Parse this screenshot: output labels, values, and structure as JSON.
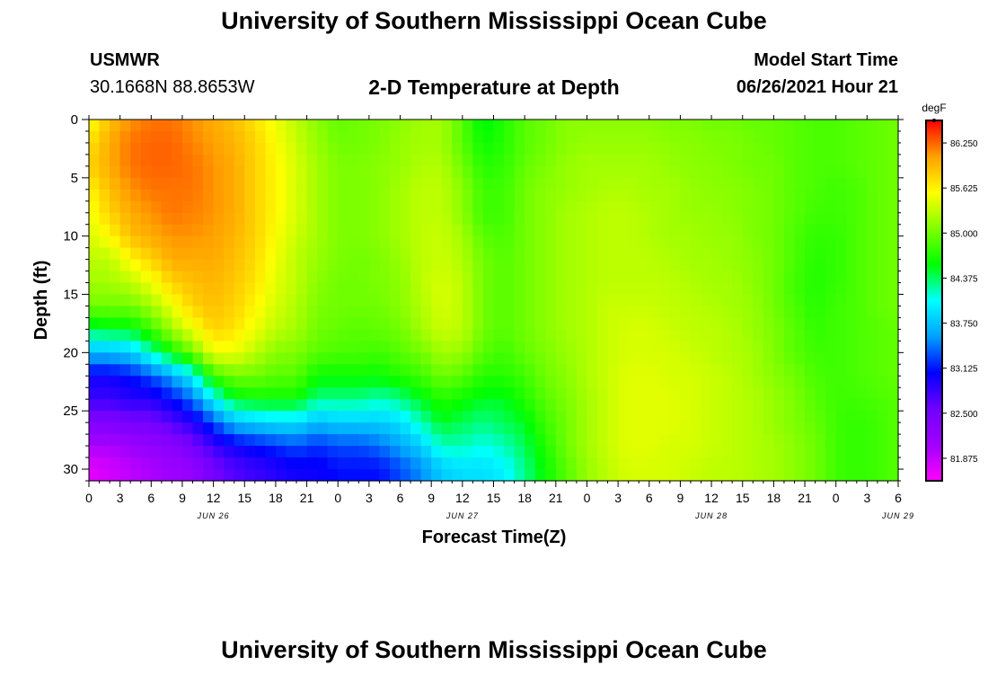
{
  "header": {
    "title": "University of Southern Mississippi Ocean Cube",
    "station": "USMWR",
    "coords": "30.1668N  88.8653W",
    "plot_title": "2-D Temperature at Depth",
    "start_label": "Model Start Time",
    "start_value": "06/26/2021 Hour 21"
  },
  "footer": {
    "title": "University of Southern Mississippi Ocean Cube"
  },
  "chart_data": {
    "type": "heatmap",
    "title": "2-D Temperature at Depth",
    "xlabel": "Forecast Time(Z)",
    "ylabel": "Depth (ft)",
    "x_ticks": [
      "0",
      "3",
      "6",
      "9",
      "12",
      "15",
      "18",
      "21",
      "0",
      "3",
      "6",
      "9",
      "12",
      "15",
      "18",
      "21",
      "0",
      "3",
      "6",
      "9",
      "12",
      "15",
      "18",
      "21",
      "0",
      "3",
      "6"
    ],
    "date_labels": [
      {
        "label": "JUN 26",
        "at_hour": 12
      },
      {
        "label": "JUN 27",
        "at_hour": 36
      },
      {
        "label": "JUN 28",
        "at_hour": 60
      },
      {
        "label": "JUN 29",
        "at_hour": 78
      }
    ],
    "xlim_hours": [
      0,
      78
    ],
    "y_ticks": [
      "0",
      "5",
      "10",
      "15",
      "20",
      "25",
      "30"
    ],
    "ylim": [
      0,
      31
    ],
    "colorbar": {
      "unit": "degF",
      "labels": [
        "86.250",
        "85.625",
        "85.000",
        "84.375",
        "83.750",
        "83.125",
        "82.500",
        "81.875"
      ],
      "range": [
        81.5625,
        86.5625
      ],
      "colors": [
        "#ff00ff",
        "#a000ff",
        "#7000ff",
        "#0000ff",
        "#00a0ff",
        "#00ffff",
        "#00ff00",
        "#80ff00",
        "#ffff00",
        "#ffa000",
        "#ff0000"
      ]
    },
    "hours": [
      0,
      2,
      4,
      6,
      8,
      10,
      12,
      14,
      16,
      18,
      20,
      22,
      24,
      26,
      28,
      30,
      32,
      34,
      36,
      38,
      40,
      42,
      44,
      46,
      48,
      50,
      52,
      54,
      56,
      58,
      60,
      62,
      64,
      66,
      68,
      70,
      72,
      74,
      76,
      78
    ],
    "depths": [
      0,
      2,
      4,
      6,
      8,
      10,
      12,
      14,
      16,
      18,
      20,
      22,
      24,
      26,
      28,
      30
    ],
    "values": [
      [
        85.5,
        85.7,
        85.8,
        85.6,
        85.5,
        85.4,
        85.3,
        85.2,
        85.0,
        84.4,
        83.7,
        83.0,
        82.8,
        82.4,
        82.0,
        81.7
      ],
      [
        85.9,
        86.0,
        86.0,
        85.9,
        85.8,
        85.6,
        85.3,
        85.2,
        85.0,
        84.5,
        83.7,
        83.0,
        82.8,
        82.4,
        82.0,
        81.8
      ],
      [
        86.1,
        86.2,
        86.2,
        86.1,
        86.0,
        85.9,
        85.6,
        85.3,
        85.0,
        84.5,
        83.8,
        83.1,
        82.9,
        82.5,
        82.1,
        81.9
      ],
      [
        86.2,
        86.25,
        86.25,
        86.2,
        86.1,
        86.0,
        85.8,
        85.5,
        85.2,
        84.8,
        84.2,
        83.3,
        82.9,
        82.5,
        82.2,
        82.0
      ],
      [
        86.2,
        86.25,
        86.25,
        86.2,
        86.2,
        86.1,
        86.0,
        85.8,
        85.5,
        85.2,
        84.6,
        83.6,
        83.1,
        82.7,
        82.3,
        82.1
      ],
      [
        86.1,
        86.15,
        86.2,
        86.2,
        86.15,
        86.1,
        86.0,
        85.9,
        85.8,
        85.5,
        85.0,
        84.0,
        83.4,
        82.9,
        82.5,
        82.2
      ],
      [
        86.0,
        86.05,
        86.1,
        86.1,
        86.1,
        86.05,
        86.0,
        85.95,
        85.9,
        85.8,
        85.5,
        84.8,
        84.0,
        83.3,
        82.8,
        82.5
      ],
      [
        85.9,
        85.95,
        86.0,
        86.0,
        86.0,
        85.95,
        85.9,
        85.85,
        85.8,
        85.7,
        85.5,
        85.0,
        84.5,
        83.7,
        83.0,
        82.7
      ],
      [
        85.7,
        85.8,
        85.8,
        85.8,
        85.8,
        85.8,
        85.75,
        85.7,
        85.6,
        85.5,
        85.3,
        85.0,
        84.6,
        83.8,
        83.1,
        82.8
      ],
      [
        85.5,
        85.55,
        85.6,
        85.6,
        85.6,
        85.55,
        85.5,
        85.45,
        85.4,
        85.3,
        85.1,
        84.9,
        84.6,
        83.9,
        83.2,
        82.9
      ],
      [
        85.3,
        85.35,
        85.4,
        85.4,
        85.4,
        85.35,
        85.3,
        85.3,
        85.25,
        85.2,
        85.05,
        84.9,
        84.6,
        83.9,
        83.3,
        83.0
      ],
      [
        85.1,
        85.15,
        85.2,
        85.2,
        85.2,
        85.2,
        85.15,
        85.1,
        85.05,
        85.0,
        84.9,
        84.6,
        84.3,
        83.7,
        83.2,
        83.0
      ],
      [
        84.95,
        85.0,
        85.05,
        85.05,
        85.05,
        85.05,
        85.05,
        85.0,
        85.0,
        84.95,
        84.85,
        84.6,
        84.3,
        83.8,
        83.3,
        83.1
      ],
      [
        85.0,
        85.0,
        85.05,
        85.05,
        85.05,
        85.05,
        85.0,
        85.0,
        85.0,
        84.9,
        84.85,
        84.6,
        84.3,
        83.8,
        83.3,
        83.1
      ],
      [
        85.05,
        85.05,
        85.1,
        85.1,
        85.1,
        85.1,
        85.05,
        85.05,
        85.0,
        84.95,
        84.8,
        84.6,
        84.2,
        83.8,
        83.4,
        83.1
      ],
      [
        85.1,
        85.15,
        85.15,
        85.2,
        85.2,
        85.2,
        85.15,
        85.1,
        85.1,
        85.0,
        84.9,
        84.7,
        84.3,
        83.9,
        83.6,
        83.3
      ],
      [
        85.2,
        85.2,
        85.25,
        85.3,
        85.3,
        85.3,
        85.3,
        85.3,
        85.25,
        85.2,
        85.0,
        84.8,
        84.5,
        84.2,
        83.8,
        83.5
      ],
      [
        85.2,
        85.2,
        85.25,
        85.3,
        85.3,
        85.35,
        85.35,
        85.4,
        85.4,
        85.35,
        85.2,
        85.0,
        84.7,
        84.5,
        84.2,
        83.8
      ],
      [
        84.9,
        84.9,
        85.0,
        85.1,
        85.1,
        85.2,
        85.25,
        85.3,
        85.3,
        85.3,
        85.15,
        84.9,
        84.6,
        84.4,
        84.2,
        83.9
      ],
      [
        84.5,
        84.6,
        84.7,
        84.8,
        84.8,
        84.9,
        85.0,
        85.0,
        85.0,
        85.0,
        84.9,
        84.7,
        84.5,
        84.3,
        84.1,
        83.9
      ],
      [
        84.7,
        84.7,
        84.75,
        84.8,
        84.8,
        84.85,
        84.9,
        84.9,
        84.9,
        84.9,
        84.8,
        84.7,
        84.5,
        84.4,
        84.2,
        84.0
      ],
      [
        84.9,
        84.9,
        84.95,
        85.0,
        85.0,
        85.0,
        85.0,
        85.0,
        85.0,
        85.0,
        84.95,
        84.8,
        84.7,
        84.5,
        84.4,
        84.3
      ],
      [
        85.0,
        85.0,
        85.05,
        85.1,
        85.1,
        85.1,
        85.1,
        85.1,
        85.1,
        85.1,
        85.05,
        85.0,
        84.9,
        84.8,
        84.7,
        84.6
      ],
      [
        85.1,
        85.1,
        85.15,
        85.15,
        85.2,
        85.2,
        85.2,
        85.2,
        85.2,
        85.2,
        85.15,
        85.1,
        85.05,
        85.0,
        85.0,
        84.9
      ],
      [
        85.1,
        85.15,
        85.2,
        85.2,
        85.25,
        85.25,
        85.25,
        85.25,
        85.25,
        85.25,
        85.25,
        85.25,
        85.2,
        85.2,
        85.2,
        85.15
      ],
      [
        85.1,
        85.15,
        85.2,
        85.25,
        85.3,
        85.3,
        85.3,
        85.3,
        85.35,
        85.35,
        85.35,
        85.35,
        85.35,
        85.35,
        85.35,
        85.3
      ],
      [
        85.1,
        85.15,
        85.2,
        85.25,
        85.3,
        85.3,
        85.3,
        85.3,
        85.35,
        85.4,
        85.4,
        85.45,
        85.45,
        85.45,
        85.45,
        85.4
      ],
      [
        85.1,
        85.15,
        85.2,
        85.2,
        85.25,
        85.25,
        85.3,
        85.3,
        85.35,
        85.4,
        85.4,
        85.45,
        85.45,
        85.45,
        85.45,
        85.4
      ],
      [
        85.05,
        85.1,
        85.15,
        85.2,
        85.2,
        85.2,
        85.25,
        85.3,
        85.3,
        85.35,
        85.4,
        85.4,
        85.45,
        85.45,
        85.4,
        85.4
      ],
      [
        85.05,
        85.1,
        85.1,
        85.15,
        85.15,
        85.2,
        85.2,
        85.25,
        85.3,
        85.3,
        85.35,
        85.4,
        85.4,
        85.4,
        85.4,
        85.35
      ],
      [
        85.0,
        85.05,
        85.1,
        85.1,
        85.15,
        85.15,
        85.2,
        85.2,
        85.25,
        85.3,
        85.3,
        85.35,
        85.35,
        85.35,
        85.35,
        85.3
      ],
      [
        85.0,
        85.05,
        85.05,
        85.1,
        85.1,
        85.15,
        85.15,
        85.2,
        85.2,
        85.25,
        85.25,
        85.3,
        85.3,
        85.3,
        85.3,
        85.3
      ],
      [
        84.95,
        85.0,
        85.0,
        85.05,
        85.05,
        85.05,
        85.1,
        85.1,
        85.15,
        85.15,
        85.2,
        85.2,
        85.25,
        85.25,
        85.25,
        85.25
      ],
      [
        84.95,
        84.95,
        85.0,
        85.0,
        85.0,
        85.0,
        85.0,
        85.0,
        85.0,
        85.05,
        85.05,
        85.1,
        85.15,
        85.15,
        85.2,
        85.2
      ],
      [
        84.9,
        84.9,
        84.9,
        84.9,
        84.9,
        84.85,
        84.85,
        84.8,
        84.85,
        84.9,
        84.9,
        85.0,
        85.05,
        85.05,
        85.1,
        85.1
      ],
      [
        84.85,
        84.85,
        84.85,
        84.85,
        84.8,
        84.75,
        84.7,
        84.7,
        84.7,
        84.75,
        84.8,
        84.85,
        84.9,
        84.95,
        85.0,
        85.0
      ],
      [
        84.85,
        84.85,
        84.85,
        84.8,
        84.8,
        84.75,
        84.75,
        84.75,
        84.8,
        84.8,
        84.8,
        84.8,
        84.8,
        84.8,
        84.8,
        84.8
      ],
      [
        84.9,
        84.9,
        84.9,
        84.85,
        84.85,
        84.85,
        84.85,
        84.85,
        84.85,
        84.85,
        84.85,
        84.85,
        84.8,
        84.75,
        84.75,
        84.75
      ],
      [
        84.95,
        84.95,
        84.95,
        84.95,
        84.95,
        84.95,
        84.95,
        84.95,
        84.95,
        84.9,
        84.9,
        84.9,
        84.85,
        84.8,
        84.8,
        84.8
      ],
      [
        85.0,
        85.0,
        85.0,
        85.0,
        85.0,
        85.0,
        85.0,
        85.0,
        85.0,
        84.95,
        84.95,
        84.95,
        84.9,
        84.9,
        84.9,
        84.9
      ]
    ]
  }
}
